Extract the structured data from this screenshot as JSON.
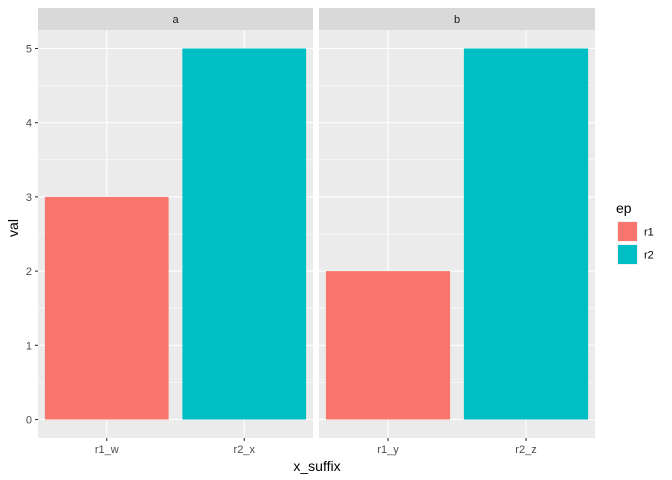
{
  "chart_data": {
    "type": "bar",
    "xlabel": "x_suffix",
    "ylabel": "val",
    "ylim": [
      0,
      5
    ],
    "yticks": [
      0,
      1,
      2,
      3,
      4,
      5
    ],
    "grid": true,
    "legend": {
      "title": "ep",
      "placement": "right",
      "entries": [
        {
          "label": "r1",
          "color": "#F8766D"
        },
        {
          "label": "r2",
          "color": "#00BFC4"
        }
      ]
    },
    "facets": [
      {
        "label": "a",
        "categories": [
          "r1_w",
          "r2_x"
        ],
        "values": [
          3,
          5
        ],
        "groups": [
          "r1",
          "r2"
        ]
      },
      {
        "label": "b",
        "categories": [
          "r1_y",
          "r2_z"
        ],
        "values": [
          2,
          5
        ],
        "groups": [
          "r1",
          "r2"
        ]
      }
    ]
  }
}
